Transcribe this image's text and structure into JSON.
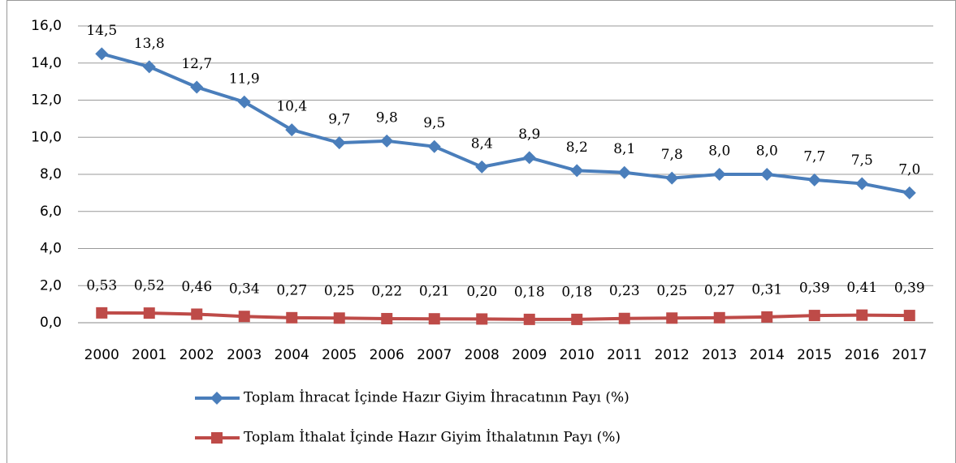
{
  "chart_data": {
    "type": "line",
    "categories": [
      "2000",
      "2001",
      "2002",
      "2003",
      "2004",
      "2005",
      "2006",
      "2007",
      "2008",
      "2009",
      "2010",
      "2011",
      "2012",
      "2013",
      "2014",
      "2015",
      "2016",
      "2017"
    ],
    "series": [
      {
        "name": "Toplam İhracat İçinde Hazır Giyim İhracatının Payı (%)",
        "color": "#4a7ebb",
        "marker": "diamond",
        "values": [
          14.5,
          13.8,
          12.7,
          11.9,
          10.4,
          9.7,
          9.8,
          9.5,
          8.4,
          8.9,
          8.2,
          8.1,
          7.8,
          8.0,
          8.0,
          7.7,
          7.5,
          7.0
        ],
        "value_labels": [
          "14,5",
          "13,8",
          "12,7",
          "11,9",
          "10,4",
          "9,7",
          "9,8",
          "9,5",
          "8,4",
          "8,9",
          "8,2",
          "8,1",
          "7,8",
          "8,0",
          "8,0",
          "7,7",
          "7,5",
          "7,0"
        ]
      },
      {
        "name": "Toplam İthalat İçinde Hazır Giyim İthalatının Payı (%)",
        "color": "#be4b48",
        "marker": "square",
        "values": [
          0.53,
          0.52,
          0.46,
          0.34,
          0.27,
          0.25,
          0.22,
          0.21,
          0.2,
          0.18,
          0.18,
          0.23,
          0.25,
          0.27,
          0.31,
          0.39,
          0.41,
          0.39
        ],
        "value_labels": [
          "0,53",
          "0,52",
          "0,46",
          "0,34",
          "0,27",
          "0,25",
          "0,22",
          "0,21",
          "0,20",
          "0,18",
          "0,18",
          "0,23",
          "0,25",
          "0,27",
          "0,31",
          "0,39",
          "0,41",
          "0,39"
        ]
      }
    ],
    "ylim": [
      0,
      16
    ],
    "yticks": [
      {
        "value": 0,
        "label": "0,0"
      },
      {
        "value": 2,
        "label": "2,0"
      },
      {
        "value": 4,
        "label": "4,0"
      },
      {
        "value": 6,
        "label": "6,0"
      },
      {
        "value": 8,
        "label": "8,0"
      },
      {
        "value": 10,
        "label": "10,0"
      },
      {
        "value": 12,
        "label": "12,0"
      },
      {
        "value": 14,
        "label": "14,0"
      },
      {
        "value": 16,
        "label": "16,0"
      }
    ],
    "grid": true,
    "legend": "bottom"
  }
}
